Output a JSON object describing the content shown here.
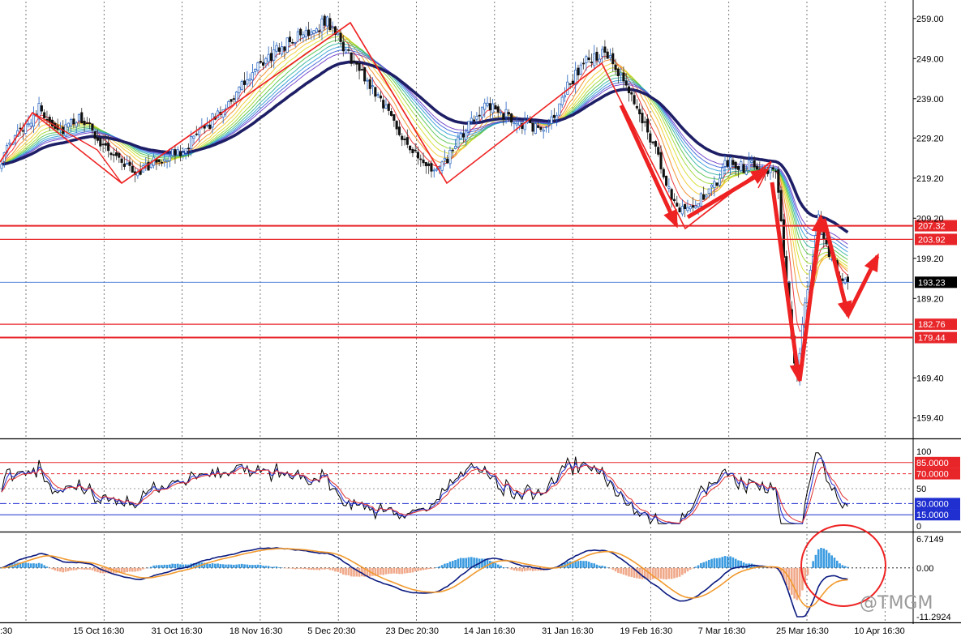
{
  "colors": {
    "up": "#1f5fbf",
    "down": "#b52020",
    "candle_edge": "#555555",
    "ma_main": "#1e1e66",
    "level_line": "#e8262a",
    "current_line": "#3a6fd8",
    "current_tag_bg": "#000000",
    "rsi_fast": "#000000",
    "rsi_mid": "#1f2fd0",
    "rsi_slow": "#e03030",
    "macd_pos": "#3b9be0",
    "macd_neg": "#f0a98a",
    "macd_line": "#0a1a80",
    "signal_line": "#f29a2e",
    "annotation": "#ee2222",
    "grid": "#000000"
  },
  "watermark": "@TMGM",
  "chart_data": [
    {
      "id": "price",
      "type": "candlestick",
      "ylim": [
        154.5,
        263.2
      ],
      "y_ticks": [
        "259.00",
        "249.00",
        "239.00",
        "229.20",
        "219.20",
        "209.20",
        "199.20",
        "189.20",
        "169.40",
        "159.40"
      ],
      "y_tick_values": [
        259.0,
        249.0,
        239.0,
        229.2,
        219.2,
        209.2,
        199.2,
        189.2,
        169.4,
        159.4
      ],
      "x_labels": [
        ":30",
        "15 Oct 16:30",
        "31 Oct 16:30",
        "18 Nov 16:30",
        "5 Dec 20:30",
        "23 Dec 20:30",
        "14 Jan 16:30",
        "31 Jan 16:30",
        "19 Feb 16:30",
        "7 Mar 16:30",
        "25 Mar 16:30",
        "10 Apr 16:30"
      ],
      "price_path_keys": [
        [
          0,
          224
        ],
        [
          8,
          232
        ],
        [
          14,
          236.5
        ],
        [
          22,
          231
        ],
        [
          30,
          234
        ],
        [
          36,
          229
        ],
        [
          44,
          224
        ],
        [
          50,
          220.5
        ],
        [
          58,
          223.5
        ],
        [
          66,
          225.5
        ],
        [
          74,
          230
        ],
        [
          82,
          236
        ],
        [
          90,
          242
        ],
        [
          98,
          248
        ],
        [
          106,
          252.5
        ],
        [
          114,
          255.5
        ],
        [
          122,
          258.5
        ],
        [
          126,
          254
        ],
        [
          134,
          246
        ],
        [
          142,
          239
        ],
        [
          150,
          230
        ],
        [
          158,
          222
        ],
        [
          164,
          221
        ],
        [
          172,
          229
        ],
        [
          180,
          237
        ],
        [
          186,
          236
        ],
        [
          194,
          233
        ],
        [
          200,
          231.5
        ],
        [
          206,
          233
        ],
        [
          212,
          242
        ],
        [
          218,
          248
        ],
        [
          226,
          250.5
        ],
        [
          232,
          244
        ],
        [
          238,
          237
        ],
        [
          244,
          228
        ],
        [
          250,
          216
        ],
        [
          254,
          212
        ],
        [
          260,
          213
        ],
        [
          266,
          216
        ],
        [
          272,
          223.5
        ],
        [
          278,
          222
        ],
        [
          282,
          223
        ],
        [
          286,
          221.5
        ],
        [
          290,
          221.5
        ],
        [
          293,
          200
        ],
        [
          296,
          178
        ],
        [
          298,
          170.5
        ],
        [
          302,
          192
        ],
        [
          306,
          209.5
        ],
        [
          310,
          200
        ],
        [
          314,
          194
        ],
        [
          318,
          193.2
        ]
      ],
      "moving_average_ribbon_offsets": [
        -0.45,
        0.0,
        0.45,
        0.9,
        1.35,
        1.8,
        2.25,
        2.7,
        3.15,
        3.6
      ],
      "levels": [
        {
          "value": 207.32,
          "label": "207.32"
        },
        {
          "value": 203.92,
          "label": "203.92"
        },
        {
          "value": 182.76,
          "label": "182.76"
        },
        {
          "value": 179.44,
          "label": "179.44"
        }
      ],
      "current_price": {
        "value": 193.23,
        "label": "193.23"
      }
    },
    {
      "id": "stochastic_rsi",
      "type": "line",
      "ylim": [
        0,
        100
      ],
      "y_ticks": [
        "100",
        "50",
        "0"
      ],
      "y_tick_values": [
        100,
        50,
        0
      ],
      "levels": [
        {
          "value": 85,
          "label": "85.0000",
          "color": "#e8262a",
          "style": "solid"
        },
        {
          "value": 70,
          "label": "70.0000",
          "color": "#e8262a",
          "style": "dashed"
        },
        {
          "value": 30,
          "label": "30.0000",
          "color": "#1f2fd0",
          "style": "dashdot"
        },
        {
          "value": 15,
          "label": "15.0000",
          "color": "#1f2fd0",
          "style": "solid"
        }
      ],
      "series_names": [
        "fast",
        "mid",
        "slow"
      ]
    },
    {
      "id": "macd",
      "type": "bar+line",
      "ylim": [
        -11.2924,
        6.7149
      ],
      "y_ticks": [
        "6.7149",
        "0.00",
        "-11.2924"
      ],
      "y_tick_values": [
        6.7149,
        0.0,
        -11.2924
      ]
    }
  ]
}
